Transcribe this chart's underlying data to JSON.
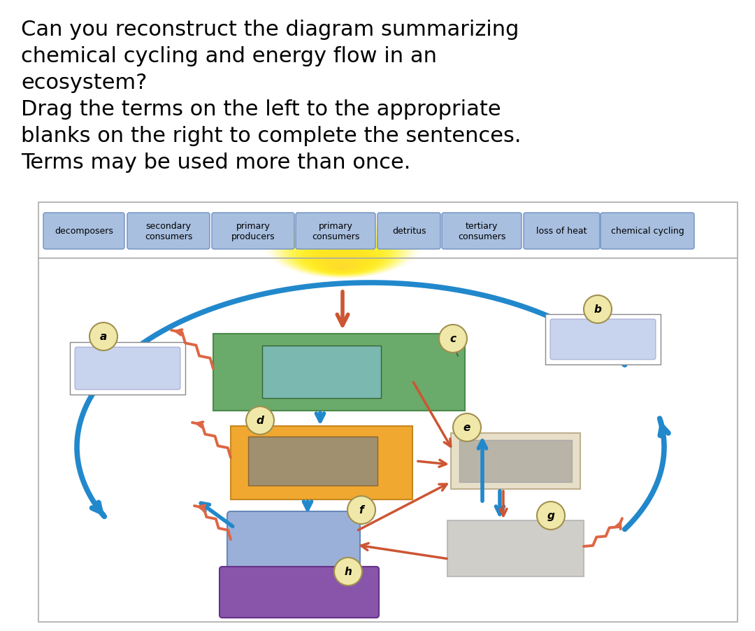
{
  "title_lines": [
    "Can you reconstruct the diagram summarizing",
    "chemical cycling and energy flow in an",
    "ecosystem?",
    "Drag the terms on the left to the appropriate",
    "blanks on the right to complete the sentences.",
    "Terms may be used more than once."
  ],
  "terms": [
    "decomposers",
    "secondary\nconsumers",
    "primary\nproducers",
    "primary\nconsumers",
    "detritus",
    "tertiary\nconsumers",
    "loss of heat",
    "chemical cycling"
  ],
  "term_bg": "#a8bfe0",
  "term_border": "#7090c0",
  "bg_color": "#ffffff",
  "arrow_blue": "#2288cc",
  "arrow_red": "#cc5533",
  "zigzag_color": "#dd6644",
  "green_color": "#6aaa6a",
  "green_border": "#4a8a4a",
  "green_inner": "#7ab8b0",
  "orange_color": "#f0a830",
  "orange_border": "#c88820",
  "orange_inner": "#a09070",
  "blue_box_color": "#9ab0d8",
  "blue_box_border": "#6688bb",
  "purple_color": "#8855aa",
  "purple_border": "#663388",
  "right_top_bg": "#e8dfc8",
  "right_top_inner": "#b8b4a8",
  "right_top_border": "#c0b090",
  "right_bot_bg": "#d0cec8",
  "right_bot_border": "#aaaaaa",
  "outer_box_bg": "#c8d4ee",
  "outer_box_border": "#888888",
  "label_bg": "#f0e8a8",
  "label_border": "#a09050"
}
